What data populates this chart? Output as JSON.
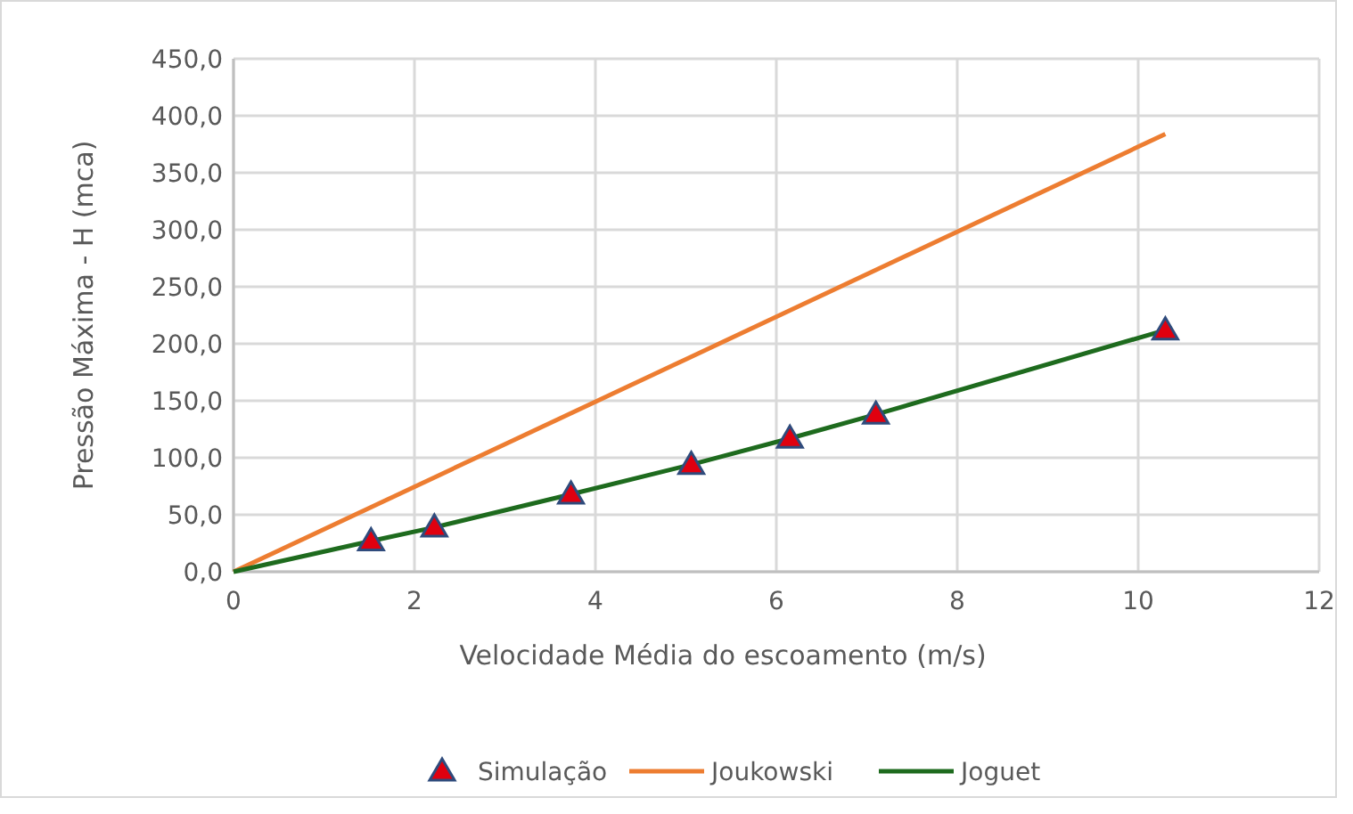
{
  "chart_data": {
    "type": "line",
    "xlabel": "Velocidade Média do escoamento (m/s)",
    "ylabel": "Pressão Máxima - H (mca)",
    "xlim": [
      0,
      12
    ],
    "xticks": [
      0,
      2,
      4,
      6,
      8,
      10,
      12
    ],
    "ylim": [
      0,
      450
    ],
    "yticks": [
      {
        "value": 0,
        "label": "0,0"
      },
      {
        "value": 50,
        "label": "50,0"
      },
      {
        "value": 100,
        "label": "100,0"
      },
      {
        "value": 150,
        "label": "150,0"
      },
      {
        "value": 200,
        "label": "200,0"
      },
      {
        "value": 250,
        "label": "250,0"
      },
      {
        "value": 300,
        "label": "300,0"
      },
      {
        "value": 350,
        "label": "350,0"
      },
      {
        "value": 400,
        "label": "400,0"
      },
      {
        "value": 450,
        "label": "450,0"
      }
    ],
    "grid": true,
    "legend": "bottom",
    "series": [
      {
        "name": "Simulação",
        "type": "scatter",
        "marker": "triangle",
        "color": "#e0000f",
        "x": [
          1.52,
          2.22,
          3.73,
          5.06,
          6.15,
          7.1,
          10.3
        ],
        "values": [
          27,
          39,
          68,
          94,
          117,
          138,
          212
        ]
      },
      {
        "name": "Joukowski",
        "color": "#ed7d31",
        "x": [
          0,
          10.3
        ],
        "values": [
          0,
          384
        ]
      },
      {
        "name": "Joguet",
        "color": "#1e6b1e",
        "x": [
          0,
          1.52,
          2.22,
          3.73,
          5.06,
          6.15,
          7.1,
          10.3
        ],
        "values": [
          0,
          27,
          39,
          68,
          94,
          117,
          138,
          212
        ]
      }
    ]
  }
}
